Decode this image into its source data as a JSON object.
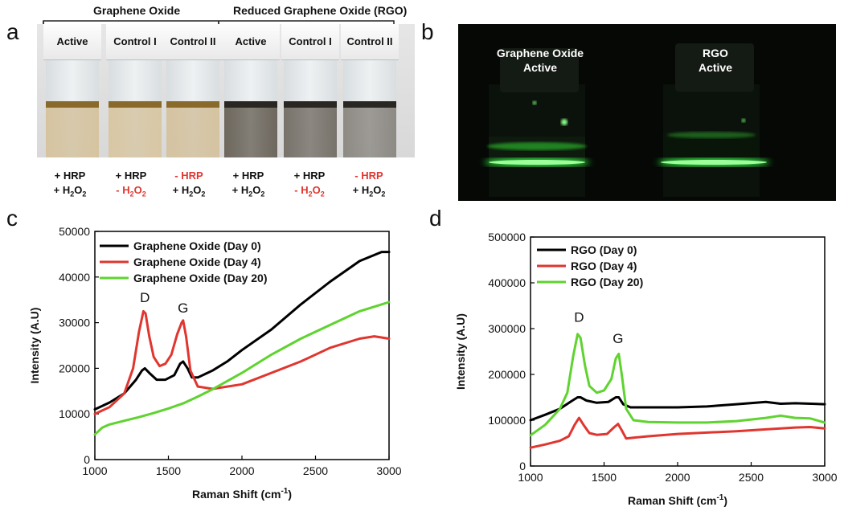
{
  "panel_labels": {
    "a": "a",
    "b": "b",
    "c": "c",
    "d": "d"
  },
  "panel_a": {
    "groups": [
      "Graphene Oxide",
      "Reduced Graphene Oxide (RGO)"
    ],
    "vials": [
      {
        "label": "Active",
        "liquid": "#d6c4a0",
        "line1": "+ HRP",
        "line2": "+ H",
        "sub": "2",
        "tail": "O",
        "sub2": "2",
        "red1": false,
        "red2": false
      },
      {
        "label": "Control I",
        "liquid": "#d8c7a4",
        "line1": "+ HRP",
        "line2": "- H",
        "sub": "2",
        "tail": "O",
        "sub2": "2",
        "red1": false,
        "red2": true
      },
      {
        "label": "Control II",
        "liquid": "#d5c3a0",
        "line1": "- HRP",
        "line2": "+ H",
        "sub": "2",
        "tail": "O",
        "sub2": "2",
        "red1": true,
        "red2": false
      },
      {
        "label": "Active",
        "liquid": "#6d675d",
        "line1": "+ HRP",
        "line2": "+ H",
        "sub": "2",
        "tail": "O",
        "sub2": "2",
        "red1": false,
        "red2": false
      },
      {
        "label": "Control I",
        "liquid": "#77726a",
        "line1": "+ HRP",
        "line2": "- H",
        "sub": "2",
        "tail": "O",
        "sub2": "2",
        "red1": false,
        "red2": true
      },
      {
        "label": "Control II",
        "liquid": "#8d8a84",
        "line1": "- HRP",
        "line2": "+ H",
        "sub": "2",
        "tail": "O",
        "sub2": "2",
        "red1": true,
        "red2": false
      }
    ]
  },
  "panel_b": {
    "labels": [
      "Graphene Oxide\nActive",
      "RGO\nActive"
    ],
    "glow": "#33ff44"
  },
  "chart_data": [
    {
      "type": "line",
      "panel": "c",
      "xlabel": "Raman Shift (cm",
      "xlabel_sup": "-1",
      "xlabel_tail": ")",
      "ylabel": "Intensity (A.U)",
      "xlim": [
        1000,
        3000
      ],
      "ylim": [
        0,
        50000
      ],
      "xticks": [
        1000,
        1500,
        2000,
        2500,
        3000
      ],
      "yticks": [
        0,
        10000,
        20000,
        30000,
        40000,
        50000
      ],
      "legend_position": "top-left",
      "annotations": [
        {
          "text": "D",
          "x": 1340,
          "y": 34500
        },
        {
          "text": "G",
          "x": 1600,
          "y": 32200
        }
      ],
      "series": [
        {
          "name": "Graphene Oxide (Day 0)",
          "color": "#000000",
          "x": [
            1000,
            1100,
            1200,
            1280,
            1320,
            1340,
            1370,
            1420,
            1480,
            1540,
            1580,
            1600,
            1630,
            1660,
            1700,
            1800,
            1900,
            2000,
            2200,
            2400,
            2600,
            2800,
            2950,
            3000
          ],
          "y": [
            11000,
            12500,
            14500,
            17500,
            19500,
            20000,
            19000,
            17500,
            17500,
            18500,
            21000,
            21500,
            20000,
            18000,
            18000,
            19500,
            21500,
            24000,
            28500,
            34000,
            39000,
            43500,
            45500,
            45500
          ]
        },
        {
          "name": "Graphene Oxide (Day 4)",
          "color": "#e0362f",
          "x": [
            1000,
            1100,
            1200,
            1260,
            1300,
            1330,
            1345,
            1370,
            1400,
            1440,
            1480,
            1520,
            1560,
            1590,
            1600,
            1620,
            1650,
            1700,
            1800,
            2000,
            2200,
            2400,
            2600,
            2800,
            2900,
            3000
          ],
          "y": [
            10000,
            11500,
            14500,
            20000,
            28000,
            32500,
            32000,
            27000,
            22500,
            20500,
            21000,
            23000,
            27500,
            30000,
            30500,
            27000,
            19500,
            16000,
            15500,
            16500,
            19000,
            21500,
            24500,
            26500,
            27000,
            26500
          ]
        },
        {
          "name": "Graphene Oxide (Day 20)",
          "color": "#5fd32f",
          "x": [
            1000,
            1050,
            1100,
            1200,
            1300,
            1400,
            1500,
            1600,
            1700,
            1800,
            1900,
            2000,
            2200,
            2400,
            2600,
            2800,
            3000
          ],
          "y": [
            5500,
            7000,
            7700,
            8500,
            9300,
            10200,
            11200,
            12300,
            13800,
            15400,
            17200,
            19000,
            23000,
            26500,
            29500,
            32500,
            34500
          ]
        }
      ]
    },
    {
      "type": "line",
      "panel": "d",
      "xlabel": "Raman Shift (cm",
      "xlabel_sup": "-1",
      "xlabel_tail": ")",
      "ylabel": "Intensity (A.U)",
      "xlim": [
        1000,
        3000
      ],
      "ylim": [
        0,
        500000
      ],
      "xticks": [
        1000,
        1500,
        2000,
        2500,
        3000
      ],
      "yticks": [
        0,
        100000,
        200000,
        300000,
        400000,
        500000
      ],
      "legend_position": "top-left",
      "annotations": [
        {
          "text": "D",
          "x": 1330,
          "y": 315000
        },
        {
          "text": "G",
          "x": 1595,
          "y": 268000
        }
      ],
      "series": [
        {
          "name": "RGO (Day 0)",
          "color": "#000000",
          "x": [
            1000,
            1100,
            1200,
            1280,
            1320,
            1340,
            1380,
            1450,
            1530,
            1580,
            1600,
            1630,
            1680,
            1800,
            2000,
            2200,
            2400,
            2600,
            2700,
            2800,
            3000
          ],
          "y": [
            100000,
            112000,
            125000,
            142000,
            150000,
            150000,
            143000,
            138000,
            140000,
            150000,
            150000,
            135000,
            128000,
            128000,
            128000,
            130000,
            135000,
            140000,
            136000,
            137000,
            135000
          ]
        },
        {
          "name": "RGO (Day 4)",
          "color": "#e0362f",
          "x": [
            1000,
            1100,
            1200,
            1260,
            1300,
            1330,
            1360,
            1400,
            1450,
            1520,
            1570,
            1595,
            1620,
            1650,
            1700,
            1800,
            2000,
            2200,
            2400,
            2600,
            2800,
            2900,
            3000
          ],
          "y": [
            40000,
            47000,
            55000,
            65000,
            90000,
            105000,
            90000,
            72000,
            68000,
            70000,
            85000,
            92000,
            78000,
            60000,
            62000,
            65000,
            70000,
            73000,
            76000,
            80000,
            84000,
            85000,
            82000
          ]
        },
        {
          "name": "RGO (Day 20)",
          "color": "#5fd32f",
          "x": [
            1000,
            1100,
            1200,
            1250,
            1290,
            1320,
            1340,
            1370,
            1400,
            1450,
            1500,
            1550,
            1580,
            1600,
            1620,
            1650,
            1700,
            1800,
            2000,
            2200,
            2400,
            2600,
            2700,
            2800,
            2900,
            3000
          ],
          "y": [
            67000,
            90000,
            125000,
            160000,
            240000,
            288000,
            280000,
            220000,
            175000,
            160000,
            165000,
            190000,
            235000,
            245000,
            200000,
            125000,
            100000,
            96000,
            95000,
            95000,
            98000,
            105000,
            110000,
            105000,
            104000,
            95000
          ]
        }
      ]
    }
  ]
}
